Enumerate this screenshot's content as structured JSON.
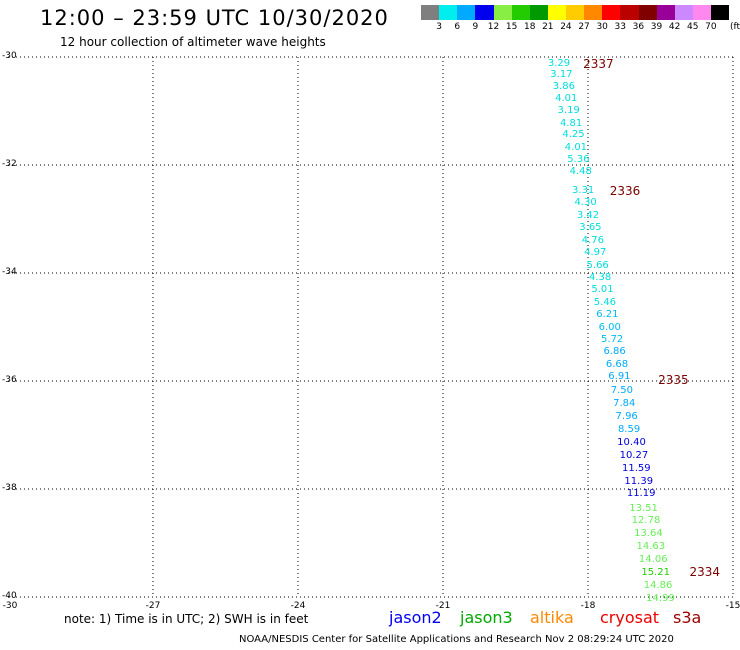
{
  "header": {
    "title": "12:00 – 23:59 UTC 10/30/2020",
    "subtitle": "12 hour collection of altimeter wave heights"
  },
  "color_scale": {
    "bins": [
      {
        "color": "#7f7f7f",
        "label": "3"
      },
      {
        "color": "#00eeee",
        "label": "6"
      },
      {
        "color": "#00aaff",
        "label": "9"
      },
      {
        "color": "#0000ee",
        "label": "12"
      },
      {
        "color": "#88ee44",
        "label": "15"
      },
      {
        "color": "#22cc00",
        "label": "18"
      },
      {
        "color": "#009900",
        "label": "21"
      },
      {
        "color": "#ffff00",
        "label": "24"
      },
      {
        "color": "#ffcc00",
        "label": "27"
      },
      {
        "color": "#ff8800",
        "label": "30"
      },
      {
        "color": "#ff0000",
        "label": "33"
      },
      {
        "color": "#bb0000",
        "label": "36"
      },
      {
        "color": "#800000",
        "label": "39"
      },
      {
        "color": "#990099",
        "label": "42"
      },
      {
        "color": "#cc88ff",
        "label": "45"
      },
      {
        "color": "#ff88ee",
        "label": "70"
      },
      {
        "color": "#000000",
        "label": ""
      }
    ],
    "unit": "(ft)"
  },
  "map": {
    "lon_range": [
      -30,
      -15
    ],
    "lat_range": [
      -40,
      -30
    ],
    "lat_ticks": [
      "-30",
      "-32",
      "-34",
      "-36",
      "-38",
      "-40"
    ],
    "lon_ticks": [
      "-27",
      "-24",
      "-21",
      "-18",
      "-15"
    ],
    "corner_lon_label": "-30",
    "observations": [
      {
        "lat": -30.15,
        "lon": -18.6,
        "v": "3.29",
        "c": "#00dddd"
      },
      {
        "lat": -30.35,
        "lon": -18.55,
        "v": "3.17",
        "c": "#00dddd"
      },
      {
        "lat": -30.57,
        "lon": -18.5,
        "v": "3.86",
        "c": "#00dddd"
      },
      {
        "lat": -30.8,
        "lon": -18.45,
        "v": "4.01",
        "c": "#00dddd"
      },
      {
        "lat": -31.02,
        "lon": -18.4,
        "v": "3.19",
        "c": "#00dddd"
      },
      {
        "lat": -31.25,
        "lon": -18.35,
        "v": "4.81",
        "c": "#00dddd"
      },
      {
        "lat": -31.47,
        "lon": -18.3,
        "v": "4.25",
        "c": "#00dddd"
      },
      {
        "lat": -31.7,
        "lon": -18.25,
        "v": "4.01",
        "c": "#00dddd"
      },
      {
        "lat": -31.92,
        "lon": -18.2,
        "v": "5.36",
        "c": "#00dddd"
      },
      {
        "lat": -32.14,
        "lon": -18.15,
        "v": "4.48",
        "c": "#00dddd"
      },
      {
        "lat": -32.5,
        "lon": -18.1,
        "v": "3.31",
        "c": "#00dddd"
      },
      {
        "lat": -32.73,
        "lon": -18.05,
        "v": "4.30",
        "c": "#00dddd"
      },
      {
        "lat": -32.96,
        "lon": -18.0,
        "v": "3.42",
        "c": "#00dddd"
      },
      {
        "lat": -33.19,
        "lon": -17.95,
        "v": "3.65",
        "c": "#00dddd"
      },
      {
        "lat": -33.42,
        "lon": -17.9,
        "v": "4.76",
        "c": "#00dddd"
      },
      {
        "lat": -33.65,
        "lon": -17.85,
        "v": "4.97",
        "c": "#00dddd"
      },
      {
        "lat": -33.88,
        "lon": -17.8,
        "v": "5.66",
        "c": "#00dddd"
      },
      {
        "lat": -34.11,
        "lon": -17.75,
        "v": "4.38",
        "c": "#00dddd"
      },
      {
        "lat": -34.34,
        "lon": -17.7,
        "v": "5.01",
        "c": "#00dddd"
      },
      {
        "lat": -34.57,
        "lon": -17.65,
        "v": "5.46",
        "c": "#00dddd"
      },
      {
        "lat": -34.8,
        "lon": -17.6,
        "v": "6.21",
        "c": "#00bbee"
      },
      {
        "lat": -35.03,
        "lon": -17.55,
        "v": "6.00",
        "c": "#00bbee"
      },
      {
        "lat": -35.26,
        "lon": -17.5,
        "v": "5.72",
        "c": "#00bbee"
      },
      {
        "lat": -35.49,
        "lon": -17.45,
        "v": "6.86",
        "c": "#00aaff"
      },
      {
        "lat": -35.72,
        "lon": -17.4,
        "v": "6.68",
        "c": "#00aaff"
      },
      {
        "lat": -35.95,
        "lon": -17.35,
        "v": "6.91",
        "c": "#00aaff"
      },
      {
        "lat": -36.2,
        "lon": -17.3,
        "v": "7.50",
        "c": "#00aaff"
      },
      {
        "lat": -36.44,
        "lon": -17.25,
        "v": "7.84",
        "c": "#00aaff"
      },
      {
        "lat": -36.68,
        "lon": -17.2,
        "v": "7.96",
        "c": "#00aaff"
      },
      {
        "lat": -36.92,
        "lon": -17.15,
        "v": "8.59",
        "c": "#00aaff"
      },
      {
        "lat": -37.16,
        "lon": -17.1,
        "v": "10.40",
        "c": "#0000dd"
      },
      {
        "lat": -37.4,
        "lon": -17.05,
        "v": "10.27",
        "c": "#0000dd"
      },
      {
        "lat": -37.64,
        "lon": -17.0,
        "v": "11.59",
        "c": "#0000dd"
      },
      {
        "lat": -37.88,
        "lon": -16.95,
        "v": "11.39",
        "c": "#0000dd"
      },
      {
        "lat": -38.12,
        "lon": -16.9,
        "v": "11.19",
        "c": "#0000dd"
      },
      {
        "lat": -38.38,
        "lon": -16.85,
        "v": "13.51",
        "c": "#66ee55"
      },
      {
        "lat": -38.62,
        "lon": -16.8,
        "v": "12.78",
        "c": "#66ee55"
      },
      {
        "lat": -38.86,
        "lon": -16.75,
        "v": "13.64",
        "c": "#66ee55"
      },
      {
        "lat": -39.1,
        "lon": -16.7,
        "v": "14.63",
        "c": "#66ee55"
      },
      {
        "lat": -39.34,
        "lon": -16.65,
        "v": "14.06",
        "c": "#66ee55"
      },
      {
        "lat": -39.58,
        "lon": -16.6,
        "v": "15.21",
        "c": "#22cc00"
      },
      {
        "lat": -39.82,
        "lon": -16.55,
        "v": "14.86",
        "c": "#66ee55"
      },
      {
        "lat": -40.06,
        "lon": -16.5,
        "v": "14.99",
        "c": "#66ee55"
      }
    ],
    "pass_labels": [
      {
        "lat": -30.15,
        "lon": -18.1,
        "text": "2337"
      },
      {
        "lat": -32.5,
        "lon": -17.55,
        "text": "2336"
      },
      {
        "lat": -36.0,
        "lon": -16.55,
        "text": "2335"
      },
      {
        "lat": -39.55,
        "lon": -15.9,
        "text": "2334"
      }
    ]
  },
  "footer": {
    "note": "note: 1) Time is in UTC; 2) SWH is in feet",
    "satellites": [
      {
        "name": "jason2",
        "color": "#0000ee"
      },
      {
        "name": "jason3",
        "color": "#00aa00"
      },
      {
        "name": "altika",
        "color": "#ff8800"
      },
      {
        "name": "cryosat",
        "color": "#ee0000"
      },
      {
        "name": "s3a",
        "color": "#990000"
      }
    ],
    "credit": "NOAA/NESDIS Center for Satellite Applications and Research    Nov  2 08:29:24 UTC 2020"
  }
}
